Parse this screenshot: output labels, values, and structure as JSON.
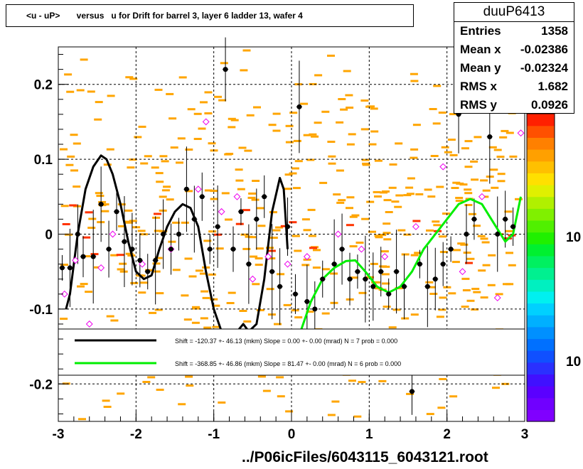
{
  "title": "<u - uP>       versus   u for Drift for barrel 3, layer 6 ladder 13, wafer 4",
  "stats": {
    "name": "duuP6413",
    "rows": [
      {
        "label": "Entries",
        "value": "1358"
      },
      {
        "label": "Mean x",
        "value": "-0.02386"
      },
      {
        "label": "Mean y",
        "value": "-0.02324"
      },
      {
        "label": "RMS x",
        "value": "1.682"
      },
      {
        "label": "RMS y",
        "value": "0.0926"
      }
    ]
  },
  "footer": "../P06icFiles/6043115_6043121.root",
  "colors": {
    "fit1": "#000000",
    "fit2": "#00ee00",
    "hist_cells": "#ffa500",
    "hist_cells_dense": "#ff3300",
    "profile_marker": "#000000",
    "open_marker": "#ee00ee"
  },
  "chart_data": {
    "type": "scatter",
    "xlim": [
      -3,
      3
    ],
    "ylim": [
      -0.25,
      0.25
    ],
    "x_ticks": [
      -3,
      -2,
      -1,
      0,
      1,
      2,
      3
    ],
    "y_ticks": [
      -0.2,
      -0.1,
      0,
      0.1,
      0.2
    ],
    "x_tick_labels": [
      "-3",
      "-2",
      "-1",
      "0",
      "1",
      "2",
      "3"
    ],
    "y_tick_labels": [
      "-0.2",
      "-0.1",
      "0",
      "0.1",
      "0.2"
    ],
    "grid": true,
    "colorbar_labels": [
      "10",
      "10"
    ],
    "profile_points": [
      {
        "x": -2.95,
        "y": -0.045
      },
      {
        "x": -2.85,
        "y": -0.045
      },
      {
        "x": -2.75,
        "y": 0.0
      },
      {
        "x": -2.68,
        "y": -0.03
      },
      {
        "x": -2.55,
        "y": -0.03
      },
      {
        "x": -2.45,
        "y": 0.04
      },
      {
        "x": -2.35,
        "y": -0.02
      },
      {
        "x": -2.25,
        "y": 0.03
      },
      {
        "x": -2.15,
        "y": -0.01
      },
      {
        "x": -2.05,
        "y": -0.02
      },
      {
        "x": -1.95,
        "y": -0.035
      },
      {
        "x": -1.85,
        "y": -0.05
      },
      {
        "x": -1.75,
        "y": -0.035
      },
      {
        "x": -1.65,
        "y": 0.0
      },
      {
        "x": -1.55,
        "y": -0.02
      },
      {
        "x": -1.45,
        "y": 0.0
      },
      {
        "x": -1.35,
        "y": 0.06
      },
      {
        "x": -1.25,
        "y": 0.02
      },
      {
        "x": -1.15,
        "y": 0.05
      },
      {
        "x": -1.05,
        "y": -0.02
      },
      {
        "x": -0.95,
        "y": 0.01
      },
      {
        "x": -0.85,
        "y": 0.22
      },
      {
        "x": -0.75,
        "y": -0.02
      },
      {
        "x": -0.65,
        "y": 0.03
      },
      {
        "x": -0.55,
        "y": -0.04
      },
      {
        "x": -0.45,
        "y": 0.02
      },
      {
        "x": -0.35,
        "y": 0.05
      },
      {
        "x": -0.25,
        "y": -0.05
      },
      {
        "x": -0.15,
        "y": -0.07
      },
      {
        "x": -0.05,
        "y": 0.01
      },
      {
        "x": 0.05,
        "y": -0.08
      },
      {
        "x": 0.1,
        "y": 0.17
      },
      {
        "x": 0.2,
        "y": -0.09
      },
      {
        "x": 0.3,
        "y": -0.1
      },
      {
        "x": 0.4,
        "y": -0.06
      },
      {
        "x": 0.55,
        "y": -0.04
      },
      {
        "x": 0.65,
        "y": -0.02
      },
      {
        "x": 0.75,
        "y": -0.06
      },
      {
        "x": 0.85,
        "y": -0.05
      },
      {
        "x": 0.95,
        "y": -0.06
      },
      {
        "x": 1.05,
        "y": -0.07
      },
      {
        "x": 1.15,
        "y": -0.05
      },
      {
        "x": 1.25,
        "y": -0.08
      },
      {
        "x": 1.35,
        "y": -0.05
      },
      {
        "x": 1.45,
        "y": -0.07
      },
      {
        "x": 1.55,
        "y": -0.21
      },
      {
        "x": 1.65,
        "y": -0.04
      },
      {
        "x": 1.75,
        "y": -0.07
      },
      {
        "x": 1.85,
        "y": -0.06
      },
      {
        "x": 1.95,
        "y": -0.04
      },
      {
        "x": 2.05,
        "y": -0.02
      },
      {
        "x": 2.15,
        "y": 0.16
      },
      {
        "x": 2.25,
        "y": 0.0
      },
      {
        "x": 2.35,
        "y": 0.02
      },
      {
        "x": 2.55,
        "y": 0.13
      },
      {
        "x": 2.65,
        "y": 0.0
      },
      {
        "x": 2.75,
        "y": 0.02
      },
      {
        "x": 2.85,
        "y": 0.01
      }
    ],
    "open_points": [
      {
        "x": -2.92,
        "y": -0.08
      },
      {
        "x": -2.78,
        "y": -0.035
      },
      {
        "x": -2.6,
        "y": -0.12
      },
      {
        "x": -2.45,
        "y": -0.045
      },
      {
        "x": -2.3,
        "y": 0.0
      },
      {
        "x": -1.92,
        "y": -0.04
      },
      {
        "x": -1.55,
        "y": -0.02
      },
      {
        "x": -1.2,
        "y": 0.06
      },
      {
        "x": -1.1,
        "y": 0.15
      },
      {
        "x": -0.9,
        "y": 0.03
      },
      {
        "x": -0.7,
        "y": 0.05
      },
      {
        "x": -0.5,
        "y": -0.06
      },
      {
        "x": -0.3,
        "y": -0.03
      },
      {
        "x": -0.05,
        "y": -0.04
      },
      {
        "x": 0.2,
        "y": -0.03
      },
      {
        "x": 0.6,
        "y": 0.0
      },
      {
        "x": 0.9,
        "y": -0.02
      },
      {
        "x": 1.2,
        "y": -0.03
      },
      {
        "x": 1.6,
        "y": 0.01
      },
      {
        "x": 1.95,
        "y": 0.09
      },
      {
        "x": 2.2,
        "y": -0.05
      },
      {
        "x": 2.45,
        "y": 0.05
      },
      {
        "x": 2.65,
        "y": -0.085
      },
      {
        "x": 2.95,
        "y": 0.135
      }
    ],
    "fits": [
      {
        "legend": "Shift =  -120.37 +- 46.13 (mkm) Slope =     0.00 +- 0.00 (mrad)  N = 7 prob = 0.000",
        "color": "#000000",
        "x": [
          -2.9,
          -2.85,
          -2.75,
          -2.65,
          -2.55,
          -2.45,
          -2.38,
          -2.3,
          -2.2,
          -2.1,
          -2.0,
          -1.9,
          -1.8,
          -1.7,
          -1.6,
          -1.5,
          -1.4,
          -1.3,
          -1.2,
          -1.1,
          -1.0,
          -0.9,
          -0.8,
          -0.7,
          -0.62,
          -0.55,
          -0.45,
          -0.35,
          -0.25,
          -0.15,
          -0.1,
          -0.05
        ],
        "y": [
          -0.1,
          -0.08,
          0.0,
          0.06,
          0.09,
          0.105,
          0.1,
          0.08,
          0.04,
          -0.01,
          -0.05,
          -0.06,
          -0.055,
          -0.02,
          0.01,
          0.03,
          0.04,
          0.035,
          0.01,
          -0.05,
          -0.1,
          -0.13,
          -0.13,
          -0.13,
          -0.12,
          -0.13,
          -0.12,
          -0.06,
          0.03,
          0.075,
          0.06,
          -0.02
        ]
      },
      {
        "legend": "Shift =  -368.85 +- 46.86 (mkm) Slope =    81.47 +- 0.00 (mrad)  N = 6 prob = 0.000",
        "color": "#00ee00",
        "x": [
          0.05,
          0.15,
          0.25,
          0.4,
          0.55,
          0.7,
          0.82,
          0.95,
          1.1,
          1.25,
          1.4,
          1.55,
          1.7,
          1.85,
          2.0,
          2.15,
          2.3,
          2.45,
          2.6,
          2.75,
          2.85,
          2.95
        ],
        "y": [
          -0.15,
          -0.12,
          -0.09,
          -0.06,
          -0.045,
          -0.036,
          -0.035,
          -0.05,
          -0.07,
          -0.078,
          -0.07,
          -0.05,
          -0.02,
          0.0,
          0.02,
          0.04,
          0.047,
          0.04,
          0.015,
          -0.01,
          0.0,
          0.05
        ]
      }
    ]
  }
}
